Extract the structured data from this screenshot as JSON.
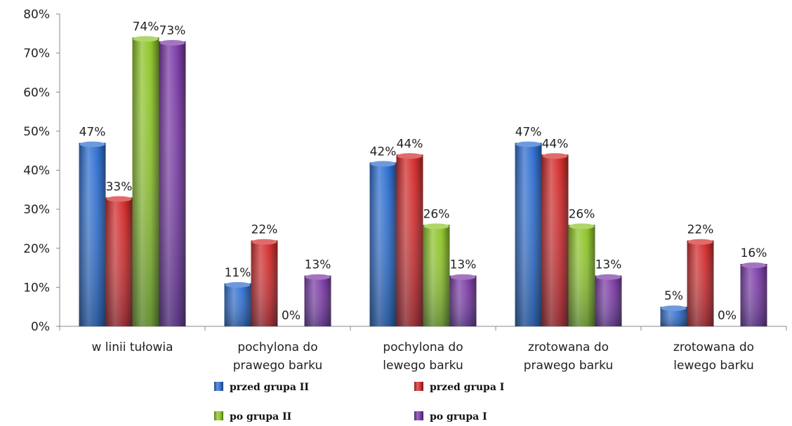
{
  "chart_data": {
    "type": "bar",
    "title": "",
    "xlabel": "",
    "ylabel": "",
    "ylim": [
      0,
      80
    ],
    "y_ticks": [
      "0%",
      "10%",
      "20%",
      "30%",
      "40%",
      "50%",
      "60%",
      "70%",
      "80%"
    ],
    "categories": [
      [
        "w linii tułowia"
      ],
      [
        "pochylona do",
        "prawego barku"
      ],
      [
        "pochylona do",
        "lewego barku"
      ],
      [
        "zrotowana do",
        "prawego barku"
      ],
      [
        "zrotowana do",
        "lewego barku"
      ]
    ],
    "series": [
      {
        "name": "przed grupa II",
        "color": "#2f6fd0",
        "values": [
          47,
          11,
          42,
          47,
          5
        ],
        "labels": [
          "47%",
          "11%",
          "42%",
          "47%",
          "5%"
        ]
      },
      {
        "name": "przed grupa I",
        "color": "#d22c2c",
        "values": [
          33,
          22,
          44,
          44,
          22
        ],
        "labels": [
          "33%",
          "22%",
          "44%",
          "44%",
          "22%"
        ]
      },
      {
        "name": "po grupa II",
        "color": "#8ec42a",
        "values": [
          74,
          0,
          26,
          26,
          0
        ],
        "labels": [
          "74%",
          "0%",
          "26%",
          "26%",
          "0%"
        ]
      },
      {
        "name": "po grupa I",
        "color": "#7b3aa6",
        "values": [
          73,
          13,
          13,
          13,
          16
        ],
        "labels": [
          "73%",
          "13%",
          "13%",
          "13%",
          "16%"
        ]
      }
    ],
    "legend_position": "bottom",
    "grid": false
  }
}
